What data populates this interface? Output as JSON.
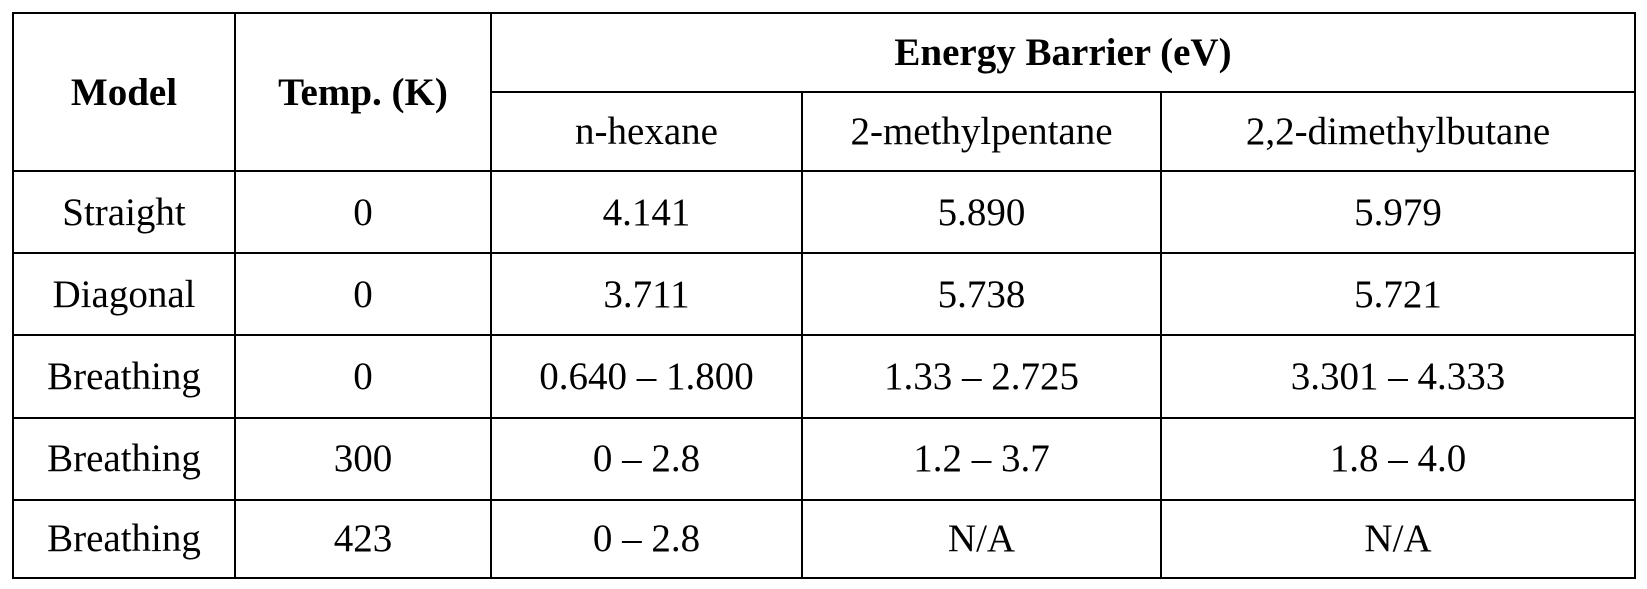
{
  "table": {
    "headers": {
      "model": "Model",
      "temp": "Temp. (K)",
      "energy_barrier": "Energy Barrier (eV)",
      "species": [
        "n-hexane",
        "2-methylpentane",
        "2,2-dimethylbutane"
      ]
    },
    "rows": [
      {
        "model": "Straight",
        "temp": "0",
        "values": [
          "4.141",
          "5.890",
          "5.979"
        ]
      },
      {
        "model": "Diagonal",
        "temp": "0",
        "values": [
          "3.711",
          "5.738",
          "5.721"
        ]
      },
      {
        "model": "Breathing",
        "temp": "0",
        "values": [
          "0.640 – 1.800",
          "1.33 – 2.725",
          "3.301 – 4.333"
        ]
      },
      {
        "model": "Breathing",
        "temp": "300",
        "values": [
          "0 – 2.8",
          "1.2 – 3.7",
          "1.8 – 4.0"
        ]
      },
      {
        "model": "Breathing",
        "temp": "423",
        "values": [
          "0 – 2.8",
          "N/A",
          "N/A"
        ]
      }
    ]
  }
}
